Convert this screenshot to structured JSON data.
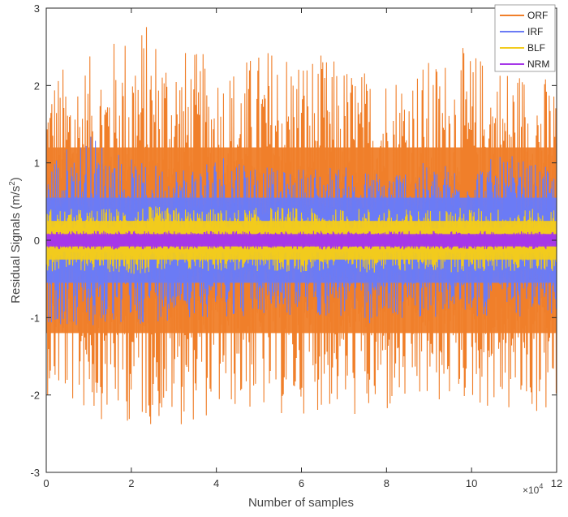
{
  "chart_data": {
    "type": "line",
    "xlabel": "Number of samples",
    "ylabel_main": "Residual Signals (m/s",
    "ylabel_sup": "2",
    "ylabel_close": ")",
    "x_exponent_base": "×10",
    "x_exponent_power": "4",
    "xlim": [
      0,
      120000
    ],
    "ylim": [
      -3,
      3
    ],
    "x_ticks": [
      0,
      20000,
      40000,
      60000,
      80000,
      100000,
      120000
    ],
    "x_tick_labels": [
      "0",
      "2",
      "4",
      "6",
      "8",
      "10",
      "12"
    ],
    "y_ticks": [
      -3,
      -2,
      -1,
      0,
      1,
      2,
      3
    ],
    "y_tick_labels": [
      "-3",
      "-2",
      "-1",
      "0",
      "1",
      "2",
      "3"
    ],
    "grid": false,
    "legend_position": "top-right",
    "series": [
      {
        "name": "ORF",
        "color": "#F07F2A",
        "band_core": [
          -1.2,
          1.2
        ],
        "envelope_max": [
          2.2,
          2.4,
          2.9,
          2.5,
          2.3,
          2.6,
          2.4,
          2.2,
          2.3,
          2.5,
          2.3,
          2.1
        ],
        "envelope_min": [
          -2.0,
          -2.3,
          -2.4,
          -2.4,
          -2.2,
          -2.3,
          -2.2,
          -2.4,
          -2.2,
          -2.1,
          -2.3,
          -2.3
        ]
      },
      {
        "name": "IRF",
        "color": "#6B7BF5",
        "band_core": [
          -0.55,
          0.55
        ],
        "envelope_max": [
          1.1,
          1.4,
          1.0,
          1.0,
          1.2,
          0.9,
          1.0,
          0.9,
          1.0,
          1.0,
          1.1,
          0.9
        ],
        "envelope_min": [
          -1.1,
          -1.2,
          -1.1,
          -1.0,
          -1.0,
          -1.0,
          -1.0,
          -1.1,
          -1.0,
          -1.0,
          -1.0,
          -1.0
        ]
      },
      {
        "name": "BLF",
        "color": "#F2CB1D",
        "band_core": [
          -0.25,
          0.25
        ],
        "envelope_max": [
          0.42,
          0.4,
          0.45,
          0.42,
          0.4,
          0.44,
          0.4,
          0.42,
          0.4,
          0.43,
          0.41,
          0.4
        ],
        "envelope_min": [
          -0.42,
          -0.4,
          -0.44,
          -0.41,
          -0.4,
          -0.43,
          -0.4,
          -0.42,
          -0.4,
          -0.42,
          -0.41,
          -0.4
        ]
      },
      {
        "name": "NRM",
        "color": "#A637E8",
        "band_core": [
          -0.08,
          0.08
        ],
        "envelope_max": [
          0.12,
          0.12,
          0.12,
          0.12,
          0.12,
          0.12,
          0.12,
          0.12,
          0.12,
          0.12,
          0.12,
          0.12
        ],
        "envelope_min": [
          -0.12,
          -0.12,
          -0.12,
          -0.12,
          -0.12,
          -0.12,
          -0.12,
          -0.12,
          -0.12,
          -0.12,
          -0.12,
          -0.12
        ]
      }
    ]
  }
}
